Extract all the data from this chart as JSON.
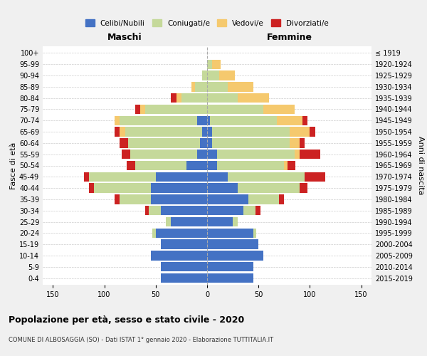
{
  "age_groups": [
    "0-4",
    "5-9",
    "10-14",
    "15-19",
    "20-24",
    "25-29",
    "30-34",
    "35-39",
    "40-44",
    "45-49",
    "50-54",
    "55-59",
    "60-64",
    "65-69",
    "70-74",
    "75-79",
    "80-84",
    "85-89",
    "90-94",
    "95-99",
    "100+"
  ],
  "birth_years": [
    "2015-2019",
    "2010-2014",
    "2005-2009",
    "2000-2004",
    "1995-1999",
    "1990-1994",
    "1985-1989",
    "1980-1984",
    "1975-1979",
    "1970-1974",
    "1965-1969",
    "1960-1964",
    "1955-1959",
    "1950-1954",
    "1945-1949",
    "1940-1944",
    "1935-1939",
    "1930-1934",
    "1925-1929",
    "1920-1924",
    "≤ 1919"
  ],
  "males": {
    "celibi": [
      45,
      45,
      55,
      45,
      50,
      35,
      45,
      55,
      55,
      50,
      20,
      10,
      7,
      5,
      10,
      0,
      0,
      0,
      0,
      0,
      0
    ],
    "coniugati": [
      0,
      0,
      0,
      0,
      3,
      5,
      12,
      30,
      55,
      65,
      50,
      65,
      70,
      75,
      75,
      60,
      25,
      12,
      5,
      0,
      0
    ],
    "vedovi": [
      0,
      0,
      0,
      0,
      0,
      0,
      0,
      0,
      0,
      0,
      0,
      0,
      0,
      5,
      5,
      5,
      5,
      3,
      0,
      0,
      0
    ],
    "divorziati": [
      0,
      0,
      0,
      0,
      0,
      0,
      3,
      5,
      5,
      5,
      8,
      8,
      8,
      5,
      0,
      5,
      5,
      0,
      0,
      0,
      0
    ]
  },
  "females": {
    "nubili": [
      45,
      45,
      55,
      50,
      45,
      25,
      35,
      40,
      30,
      20,
      10,
      10,
      5,
      5,
      3,
      0,
      0,
      0,
      0,
      0,
      0
    ],
    "coniugate": [
      0,
      0,
      0,
      0,
      3,
      5,
      12,
      30,
      60,
      75,
      65,
      75,
      75,
      75,
      65,
      55,
      30,
      20,
      12,
      5,
      0
    ],
    "vedove": [
      0,
      0,
      0,
      0,
      0,
      0,
      0,
      0,
      0,
      0,
      3,
      5,
      10,
      20,
      25,
      30,
      30,
      25,
      15,
      8,
      0
    ],
    "divorziate": [
      0,
      0,
      0,
      0,
      0,
      0,
      5,
      5,
      8,
      20,
      8,
      20,
      5,
      5,
      5,
      0,
      0,
      0,
      0,
      0,
      0
    ]
  },
  "colors": {
    "celibi": "#4472c4",
    "coniugati": "#c5d99a",
    "vedovi": "#f5c96e",
    "divorziati": "#cc2222"
  },
  "xlim": 160,
  "title": "Popolazione per età, sesso e stato civile - 2020",
  "subtitle": "COMUNE DI ALBOSAGGIA (SO) - Dati ISTAT 1° gennaio 2020 - Elaborazione TUTTITALIA.IT",
  "xlabel_left": "Maschi",
  "xlabel_right": "Femmine",
  "ylabel": "Fasce di età",
  "ylabel_right": "Anni di nascita",
  "legend_labels": [
    "Celibi/Nubili",
    "Coniugati/e",
    "Vedovi/e",
    "Divorziati/e"
  ],
  "bg_color": "#f0f0f0",
  "plot_bg": "#ffffff"
}
